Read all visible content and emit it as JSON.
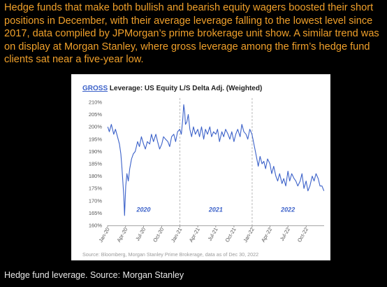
{
  "article": {
    "paragraph": "Hedge funds that make both bullish and bearish equity wagers boosted their short positions in December, with their average leverage falling to the lowest level since 2017, data compiled by JPMorgan’s prime brokerage unit show. A similar trend was on display at Morgan Stanley, where gross leverage among the firm’s hedge fund clients sat near a five-year low.",
    "caption": "Hedge fund leverage. Source: Morgan Stanley"
  },
  "colors": {
    "page_background": "#000000",
    "paragraph_text": "#f0a02a",
    "caption_text": "#e8e8e8",
    "series_line": "#3b61c9",
    "title_accent": "#3b61c9",
    "year_label": "#3b61c9"
  },
  "chart_data": {
    "type": "line",
    "title_prefix": "GROSS",
    "title": " Leverage: US Equity L/S Delta Adj. (Weighted)",
    "source": "Source: Bloomberg, Morgan Stanley Prime Brokerage, data as of Dec 30, 2022",
    "ylim": [
      160,
      210
    ],
    "y_ticks": [
      160,
      165,
      170,
      175,
      180,
      185,
      190,
      195,
      200,
      205,
      210
    ],
    "y_tick_labels": [
      "160%",
      "165%",
      "170%",
      "175%",
      "180%",
      "185%",
      "190%",
      "195%",
      "200%",
      "205%",
      "210%"
    ],
    "x_range": [
      "2020-01-01",
      "2022-12-31"
    ],
    "x_ticks": [
      "2020-01-01",
      "2020-04-01",
      "2020-07-01",
      "2020-10-01",
      "2021-01-01",
      "2021-04-01",
      "2021-07-01",
      "2021-10-01",
      "2022-01-01",
      "2022-04-01",
      "2022-07-01",
      "2022-10-01"
    ],
    "x_tick_labels": [
      "Jan-20",
      "Apr-20",
      "Jul-20",
      "Oct-20",
      "Jan-21",
      "Apr-21",
      "Jul-21",
      "Oct-21",
      "Jan-22",
      "Apr-22",
      "Jul-22",
      "Oct-22"
    ],
    "year_labels": [
      {
        "text": "2020",
        "x": "2020-07-01",
        "y": 165.5
      },
      {
        "text": "2021",
        "x": "2021-07-01",
        "y": 165.5
      },
      {
        "text": "2022",
        "x": "2022-07-01",
        "y": 165.5
      }
    ],
    "year_dividers": [
      "2021-01-01",
      "2022-01-01"
    ],
    "grid": false,
    "series": [
      {
        "x": [
          "2020-01-02",
          "2020-01-10",
          "2020-01-20",
          "2020-02-01",
          "2020-02-10",
          "2020-02-20",
          "2020-03-01",
          "2020-03-08",
          "2020-03-13",
          "2020-03-18",
          "2020-03-23",
          "2020-03-27",
          "2020-04-02",
          "2020-04-08",
          "2020-04-15",
          "2020-04-22",
          "2020-05-01",
          "2020-05-10",
          "2020-05-20",
          "2020-06-01",
          "2020-06-10",
          "2020-06-20",
          "2020-07-01",
          "2020-07-10",
          "2020-07-20",
          "2020-08-01",
          "2020-08-10",
          "2020-08-20",
          "2020-09-01",
          "2020-09-10",
          "2020-09-20",
          "2020-10-01",
          "2020-10-10",
          "2020-10-20",
          "2020-11-01",
          "2020-11-10",
          "2020-11-20",
          "2020-12-01",
          "2020-12-10",
          "2020-12-20",
          "2020-12-31",
          "2021-01-08",
          "2021-01-15",
          "2021-01-20",
          "2021-01-25",
          "2021-01-29",
          "2021-02-05",
          "2021-02-12",
          "2021-02-20",
          "2021-03-01",
          "2021-03-10",
          "2021-03-20",
          "2021-04-01",
          "2021-04-10",
          "2021-04-20",
          "2021-05-01",
          "2021-05-10",
          "2021-05-20",
          "2021-06-01",
          "2021-06-10",
          "2021-06-20",
          "2021-07-01",
          "2021-07-10",
          "2021-07-20",
          "2021-08-01",
          "2021-08-10",
          "2021-08-20",
          "2021-09-01",
          "2021-09-10",
          "2021-09-20",
          "2021-10-01",
          "2021-10-10",
          "2021-10-20",
          "2021-11-01",
          "2021-11-10",
          "2021-11-20",
          "2021-12-01",
          "2021-12-10",
          "2021-12-20",
          "2021-12-31",
          "2022-01-10",
          "2022-01-20",
          "2022-02-01",
          "2022-02-10",
          "2022-02-20",
          "2022-03-01",
          "2022-03-10",
          "2022-03-20",
          "2022-04-01",
          "2022-04-10",
          "2022-04-20",
          "2022-05-01",
          "2022-05-10",
          "2022-05-20",
          "2022-06-01",
          "2022-06-10",
          "2022-06-20",
          "2022-07-01",
          "2022-07-10",
          "2022-07-20",
          "2022-08-01",
          "2022-08-10",
          "2022-08-20",
          "2022-09-01",
          "2022-09-10",
          "2022-09-20",
          "2022-10-01",
          "2022-10-10",
          "2022-10-20",
          "2022-11-01",
          "2022-11-10",
          "2022-11-20",
          "2022-12-01",
          "2022-12-10",
          "2022-12-20",
          "2022-12-30"
        ],
        "values": [
          200,
          198,
          201,
          197,
          199,
          196,
          193,
          189,
          184,
          178,
          172,
          164,
          176,
          181,
          178,
          183,
          187,
          189,
          190,
          194,
          192,
          196,
          193,
          191,
          194,
          193,
          197,
          194,
          197,
          194,
          191,
          193,
          196,
          195,
          194,
          192,
          196,
          197,
          194,
          198,
          199,
          197,
          203,
          209,
          206,
          201,
          202,
          205,
          199,
          196,
          200,
          197,
          199,
          196,
          200,
          195,
          199,
          197,
          200,
          196,
          198,
          197,
          199,
          194,
          198,
          196,
          199,
          197,
          195,
          198,
          194,
          197,
          199,
          196,
          201,
          198,
          197,
          195,
          199,
          197,
          193,
          189,
          184,
          188,
          185,
          186,
          183,
          187,
          185,
          181,
          184,
          180,
          178,
          181,
          177,
          179,
          176,
          182,
          178,
          181,
          179,
          178,
          176,
          178,
          181,
          175,
          178,
          174,
          176,
          180,
          178,
          181,
          179,
          176,
          176,
          174
        ]
      }
    ]
  }
}
